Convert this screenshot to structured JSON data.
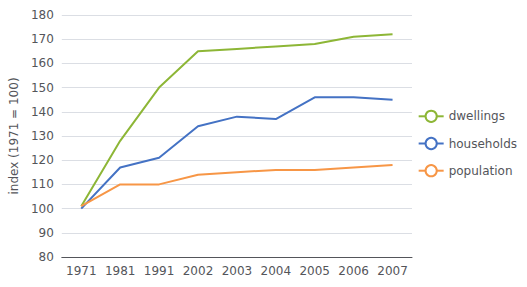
{
  "chart_data": {
    "type": "line",
    "categories": [
      "1971",
      "1981",
      "1991",
      "2002",
      "2003",
      "2004",
      "2005",
      "2006",
      "2007"
    ],
    "series": [
      {
        "name": "dwellings",
        "color": "#8db636",
        "values": [
          101,
          128,
          150,
          165,
          166,
          167,
          168,
          171,
          172
        ]
      },
      {
        "name": "households",
        "color": "#4472c4",
        "values": [
          100,
          117,
          121,
          134,
          138,
          137,
          146,
          146,
          145
        ]
      },
      {
        "name": "population",
        "color": "#f79646",
        "values": [
          101,
          110,
          110,
          114,
          115,
          116,
          116,
          117,
          118
        ]
      }
    ],
    "ylabel": "index (1971 = 100)",
    "ylim": [
      80,
      180
    ],
    "yticks": [
      80,
      90,
      100,
      110,
      120,
      130,
      140,
      150,
      160,
      170,
      180
    ],
    "grid": true,
    "legend": "right"
  }
}
